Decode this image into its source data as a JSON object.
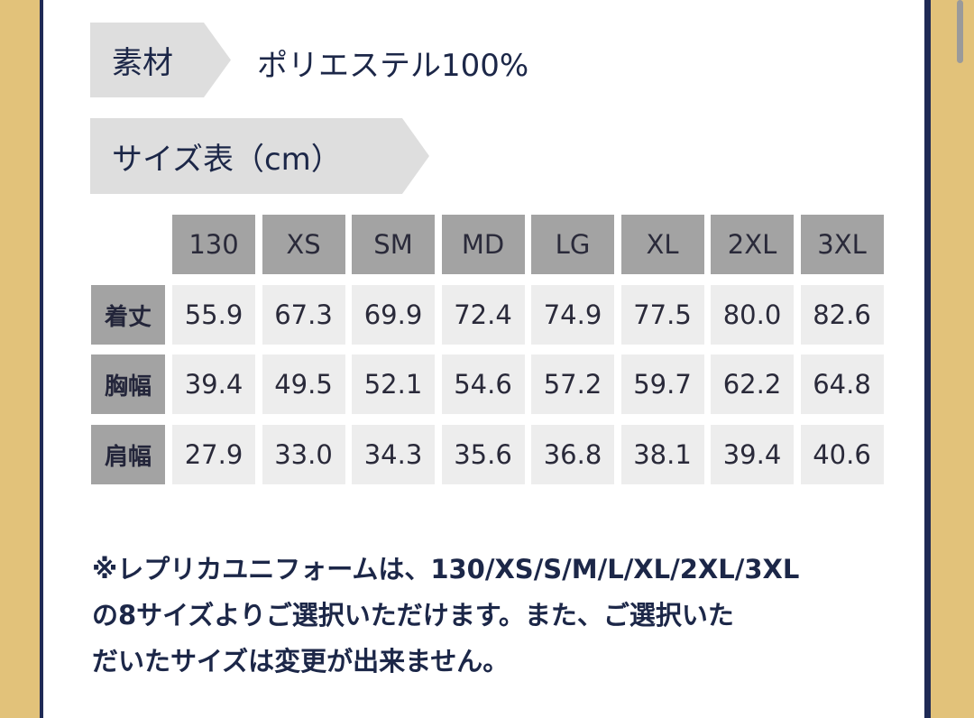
{
  "material": {
    "label": "素材",
    "value": "ポリエステル100%"
  },
  "size_table": {
    "label": "サイズ表（cm）",
    "columns": [
      "130",
      "XS",
      "SM",
      "MD",
      "LG",
      "XL",
      "2XL",
      "3XL"
    ],
    "rows": [
      {
        "label": "着丈",
        "values": [
          "55.9",
          "67.3",
          "69.9",
          "72.4",
          "74.9",
          "77.5",
          "80.0",
          "82.6"
        ]
      },
      {
        "label": "胸幅",
        "values": [
          "39.4",
          "49.5",
          "52.1",
          "54.6",
          "57.2",
          "59.7",
          "62.2",
          "64.8"
        ]
      },
      {
        "label": "肩幅",
        "values": [
          "27.9",
          "33.0",
          "34.3",
          "35.6",
          "36.8",
          "38.1",
          "39.4",
          "40.6"
        ]
      }
    ]
  },
  "note": {
    "lines": [
      "※レプリカユニフォームは、130/XS/S/M/L/XL/2XL/3XL",
      "の8サイズよりご選択いただけます。また、ご選択いた",
      "だいたサイズは変更が出来ません。"
    ]
  }
}
